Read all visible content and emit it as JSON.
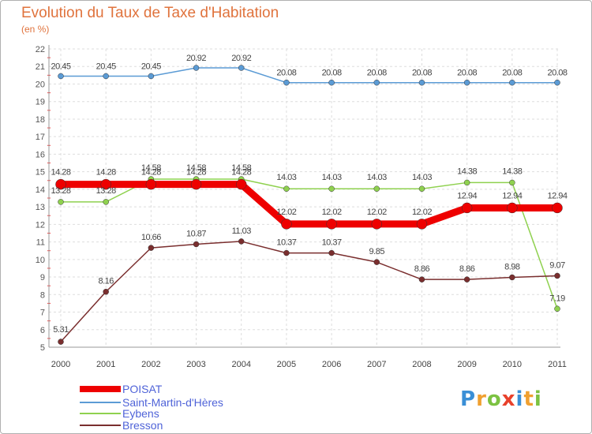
{
  "chart_data": {
    "type": "line",
    "title": "Evolution du Taux de Taxe d'Habitation",
    "subtitle": "(en %)",
    "xlabel": "",
    "ylabel": "",
    "ylim": [
      5,
      22
    ],
    "yticks": [
      "5",
      "6",
      "7",
      "8",
      "9",
      "10",
      "11",
      "12",
      "13",
      "14",
      "15",
      "16",
      "17",
      "18",
      "19",
      "20",
      "21",
      "22"
    ],
    "categories": [
      "2000",
      "2001",
      "2002",
      "2003",
      "2004",
      "2005",
      "2006",
      "2007",
      "2008",
      "2009",
      "2010",
      "2011"
    ],
    "grid": true,
    "legend_position": "bottom-left",
    "series": [
      {
        "name": "Saint-Martin-d'Hères",
        "color": "#5b9bd5",
        "values": [
          20.45,
          20.45,
          20.45,
          20.92,
          20.92,
          20.08,
          20.08,
          20.08,
          20.08,
          20.08,
          20.08,
          20.08
        ],
        "labels": [
          "20.45",
          "20.45",
          "20.45",
          "20.92",
          "20.92",
          "20.08",
          "20.08",
          "20.08",
          "20.08",
          "20.08",
          "20.08",
          "20.08"
        ]
      },
      {
        "name": "Eybens",
        "color": "#8fd14f",
        "values": [
          13.28,
          13.28,
          14.58,
          14.58,
          14.58,
          14.03,
          14.03,
          14.03,
          14.03,
          14.38,
          14.38,
          7.19
        ],
        "labels": [
          "13.28",
          "13.28",
          "14.58",
          "14.58",
          "14.58",
          "14.03",
          "14.03",
          "14.03",
          "14.03",
          "14.38",
          "14.38",
          "7.19"
        ]
      },
      {
        "name": "Bresson",
        "color": "#7a2e2e",
        "values": [
          5.31,
          8.16,
          10.66,
          10.87,
          11.03,
          10.37,
          10.37,
          9.85,
          8.86,
          8.86,
          8.98,
          9.07
        ],
        "labels": [
          "5.31",
          "8.16",
          "10.66",
          "10.87",
          "11.03",
          "10.37",
          "10.37",
          "9.85",
          "8.86",
          "8.86",
          "8.98",
          "9.07"
        ]
      },
      {
        "name": "POISAT",
        "color": "#ee0000",
        "values": [
          14.28,
          14.28,
          14.28,
          14.28,
          14.28,
          12.02,
          12.02,
          12.02,
          12.02,
          12.94,
          12.94,
          12.94
        ],
        "labels": [
          "14.28",
          "14.28",
          "14.28",
          "14.28",
          "14.28",
          "12.02",
          "12.02",
          "12.02",
          "12.02",
          "12.94",
          "12.94",
          "12.94"
        ]
      }
    ],
    "legend": [
      "POISAT",
      "Saint-Martin-d'Hères",
      "Eybens",
      "Bresson"
    ]
  },
  "logo": {
    "letters": [
      "P",
      "r",
      "o",
      "x",
      "i",
      "t",
      "i"
    ]
  }
}
